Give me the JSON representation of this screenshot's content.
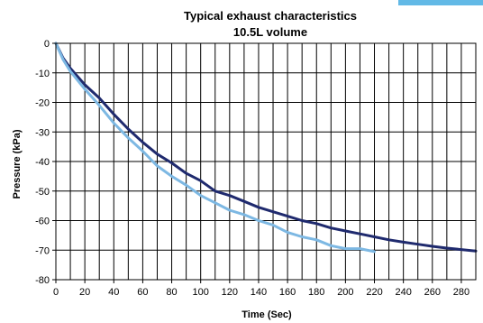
{
  "corner_strip_color": "#62b9e6",
  "chart_data": {
    "type": "line",
    "title": "Typical exhaust characteristics",
    "subtitle": "10.5L volume",
    "xlabel": "Time (Sec)",
    "ylabel": "Pressure (kPa)",
    "xlim": [
      0,
      290
    ],
    "ylim": [
      -80,
      0
    ],
    "x_ticks": [
      0,
      20,
      40,
      60,
      80,
      100,
      120,
      140,
      160,
      180,
      200,
      220,
      240,
      260,
      280
    ],
    "y_ticks": [
      0,
      -10,
      -20,
      -30,
      -40,
      -50,
      -60,
      -70,
      -80
    ],
    "grid": true,
    "legend": "none",
    "series": [
      {
        "color": "#1f2a6e",
        "x": [
          0,
          5,
          10,
          20,
          30,
          40,
          50,
          60,
          70,
          80,
          90,
          100,
          110,
          120,
          130,
          140,
          150,
          160,
          170,
          180,
          190,
          200,
          210,
          220,
          230,
          240,
          250,
          260,
          270,
          280,
          290
        ],
        "y": [
          0,
          -5,
          -8.5,
          -14,
          -18.5,
          -24,
          -29,
          -33.5,
          -37.5,
          -40.5,
          -44,
          -46.5,
          -50,
          -51.5,
          -53.5,
          -55.5,
          -57,
          -58.5,
          -60,
          -61,
          -62.5,
          -63.5,
          -64.5,
          -65.5,
          -66.5,
          -67.3,
          -68,
          -68.7,
          -69.3,
          -69.8,
          -70.3
        ]
      },
      {
        "color": "#7db8e3",
        "x": [
          0,
          5,
          10,
          20,
          30,
          40,
          50,
          60,
          70,
          80,
          90,
          100,
          110,
          120,
          130,
          140,
          150,
          160,
          170,
          180,
          190,
          200,
          210,
          220
        ],
        "y": [
          0,
          -5.5,
          -9.5,
          -15.5,
          -21,
          -27,
          -32,
          -36.5,
          -41.5,
          -45,
          -48,
          -51.5,
          -54,
          -56.5,
          -58,
          -60,
          -61.5,
          -64,
          -65.5,
          -66.5,
          -68.5,
          -69.5,
          -69.5,
          -70.5
        ]
      }
    ]
  }
}
